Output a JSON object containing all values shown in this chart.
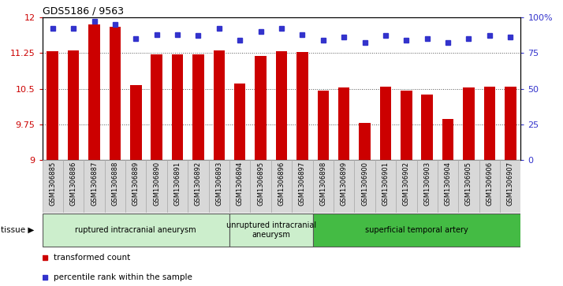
{
  "title": "GDS5186 / 9563",
  "samples": [
    "GSM1306885",
    "GSM1306886",
    "GSM1306887",
    "GSM1306888",
    "GSM1306889",
    "GSM1306890",
    "GSM1306891",
    "GSM1306892",
    "GSM1306893",
    "GSM1306894",
    "GSM1306895",
    "GSM1306896",
    "GSM1306897",
    "GSM1306898",
    "GSM1306899",
    "GSM1306900",
    "GSM1306901",
    "GSM1306902",
    "GSM1306903",
    "GSM1306904",
    "GSM1306905",
    "GSM1306906",
    "GSM1306907"
  ],
  "transformed_count": [
    11.28,
    11.3,
    11.85,
    11.8,
    10.58,
    11.22,
    11.22,
    11.22,
    11.3,
    10.6,
    11.18,
    11.28,
    11.27,
    10.46,
    10.52,
    9.78,
    10.55,
    10.46,
    10.38,
    9.86,
    10.53,
    10.55,
    10.55
  ],
  "percentile_rank": [
    92,
    92,
    97,
    95,
    85,
    88,
    88,
    87,
    92,
    84,
    90,
    92,
    88,
    84,
    86,
    82,
    87,
    84,
    85,
    82,
    85,
    87,
    86
  ],
  "ylim_left": [
    9,
    12
  ],
  "ylim_right": [
    0,
    100
  ],
  "yticks_left": [
    9,
    9.75,
    10.5,
    11.25,
    12
  ],
  "yticks_right": [
    0,
    25,
    50,
    75,
    100
  ],
  "ytick_labels_left": [
    "9",
    "9.75",
    "10.5",
    "11.25",
    "12"
  ],
  "ytick_labels_right": [
    "0",
    "25",
    "50",
    "75",
    "100%"
  ],
  "bar_color": "#cc0000",
  "dot_color": "#3333cc",
  "bar_bottom": 9,
  "groups": [
    {
      "label": "ruptured intracranial aneurysm",
      "start": 0,
      "end": 8,
      "color": "#cceecc"
    },
    {
      "label": "unruptured intracranial\naneurysm",
      "start": 9,
      "end": 12,
      "color": "#cceecc"
    },
    {
      "label": "superficial temporal artery",
      "start": 13,
      "end": 22,
      "color": "#44bb44"
    }
  ],
  "plot_bg_color": "#ffffff",
  "xtick_bg_color": "#d8d8d8",
  "dotted_line_color": "#555555",
  "grid_yticks": [
    9.75,
    10.5,
    11.25
  ],
  "dot_size": 5,
  "bar_width": 0.55
}
